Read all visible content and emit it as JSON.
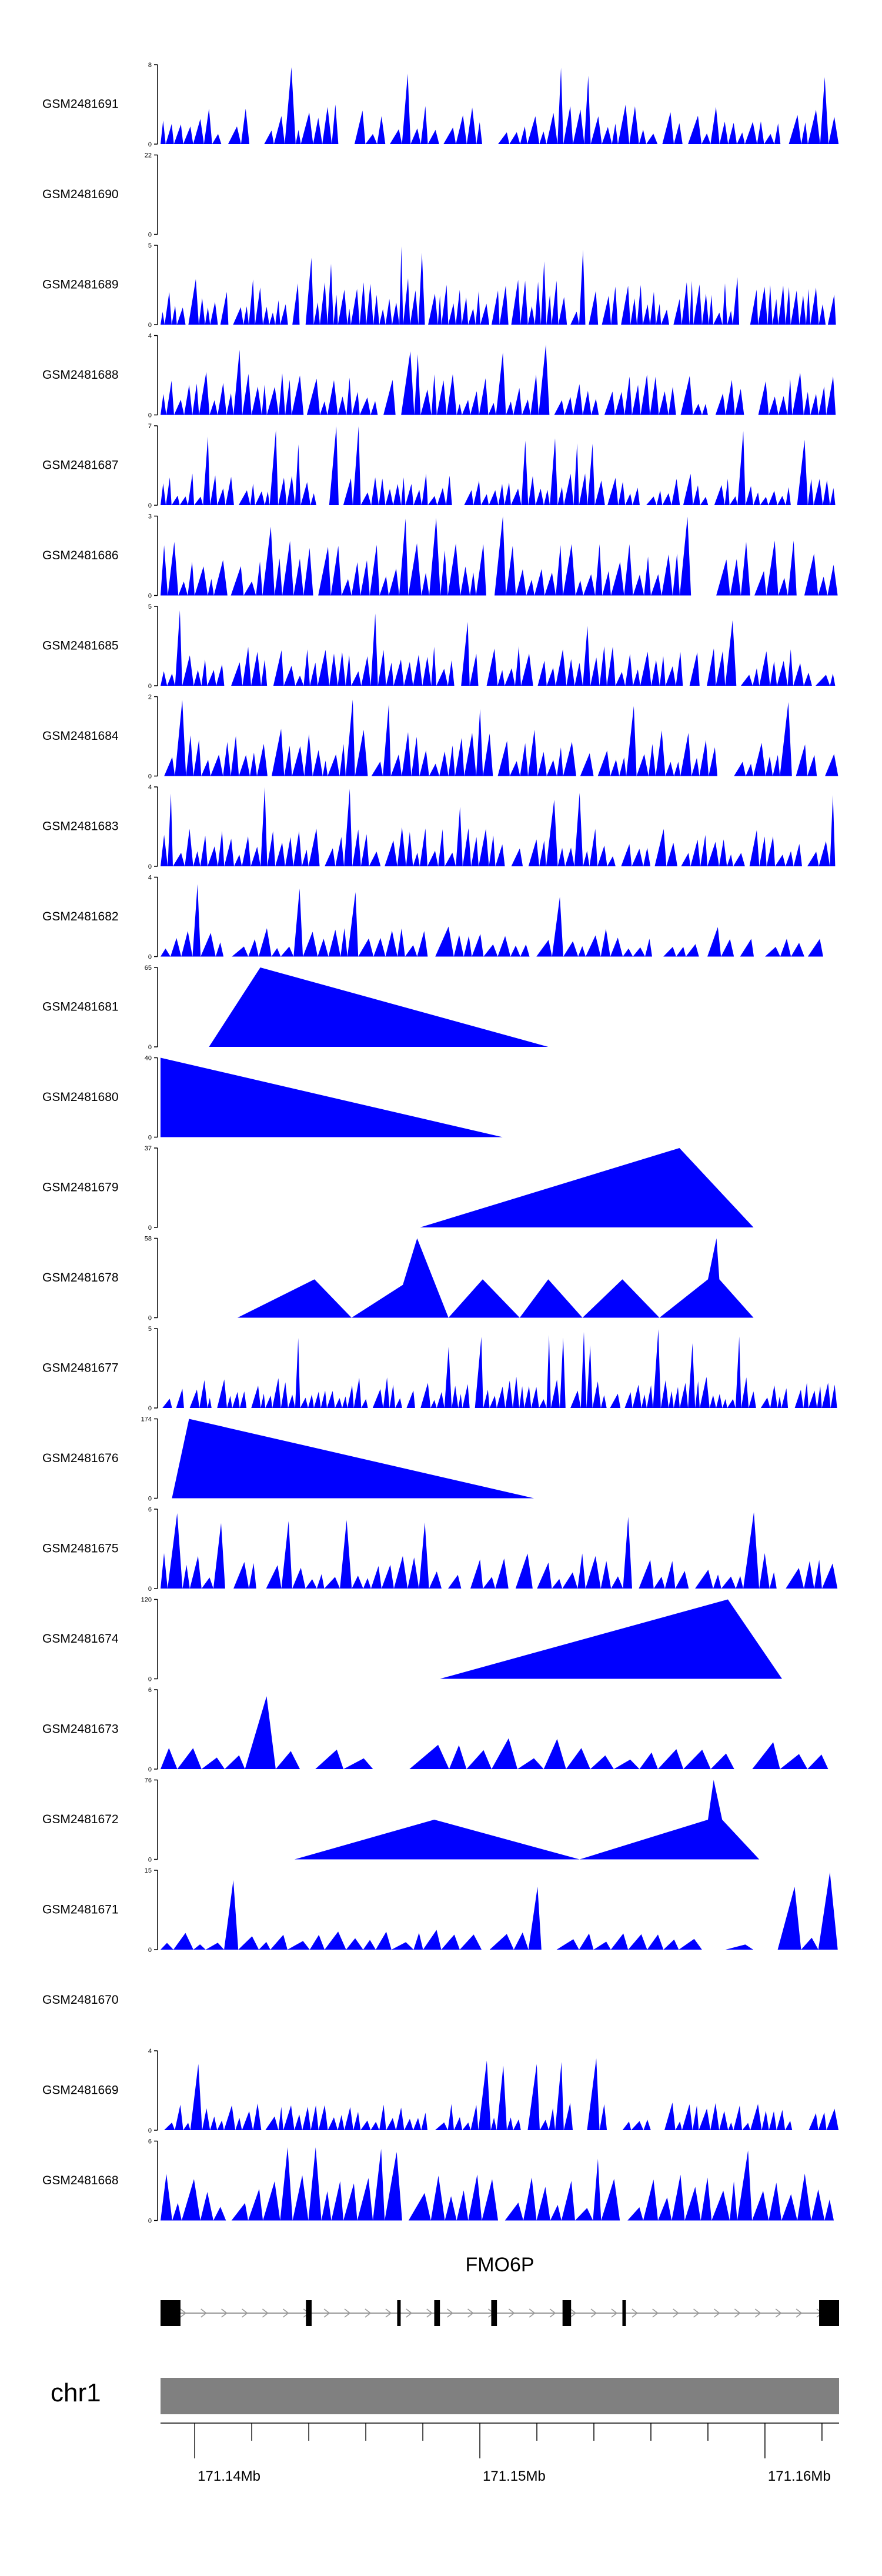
{
  "chart_data": {
    "type": "area",
    "colors": {
      "fill": "#0000ff",
      "axis": "#000000",
      "chrom_bar": "#808080",
      "gene": "#000000"
    },
    "tracks": [
      {
        "name": "GSM2481691",
        "ylim": [
          0,
          8
        ],
        "tick_labels": [
          "0",
          "8"
        ]
      },
      {
        "name": "GSM2481690",
        "ylim": [
          0,
          22
        ],
        "tick_labels": [
          "0",
          "22"
        ]
      },
      {
        "name": "GSM2481689",
        "ylim": [
          0,
          5
        ],
        "tick_labels": [
          "0",
          "5"
        ]
      },
      {
        "name": "GSM2481688",
        "ylim": [
          0,
          4
        ],
        "tick_labels": [
          "0",
          "4"
        ]
      },
      {
        "name": "GSM2481687",
        "ylim": [
          0,
          7
        ],
        "tick_labels": [
          "0",
          "7"
        ]
      },
      {
        "name": "GSM2481686",
        "ylim": [
          0,
          3
        ],
        "tick_labels": [
          "0",
          "3"
        ]
      },
      {
        "name": "GSM2481685",
        "ylim": [
          0,
          5
        ],
        "tick_labels": [
          "0",
          "5"
        ]
      },
      {
        "name": "GSM2481684",
        "ylim": [
          0,
          2
        ],
        "tick_labels": [
          "0",
          "2"
        ]
      },
      {
        "name": "GSM2481683",
        "ylim": [
          0,
          4
        ],
        "tick_labels": [
          "0",
          "4"
        ]
      },
      {
        "name": "GSM2481682",
        "ylim": [
          0,
          4
        ],
        "tick_labels": [
          "0",
          "4"
        ]
      },
      {
        "name": "GSM2481681",
        "ylim": [
          0,
          65
        ],
        "tick_labels": [
          "0",
          "65"
        ],
        "segments": [
          [
            171.1405,
            0
          ],
          [
            171.1423,
            65
          ],
          [
            171.1524,
            0
          ]
        ]
      },
      {
        "name": "GSM2481680",
        "ylim": [
          0,
          40
        ],
        "tick_labels": [
          "0",
          "40"
        ],
        "segments": [
          [
            171.1388,
            0
          ],
          [
            171.1388,
            40
          ],
          [
            171.1508,
            0
          ]
        ]
      },
      {
        "name": "GSM2481679",
        "ylim": [
          0,
          37
        ],
        "tick_labels": [
          "0",
          "37"
        ],
        "segments": [
          [
            171.1479,
            0
          ],
          [
            171.157,
            37
          ],
          [
            171.1596,
            0
          ]
        ]
      },
      {
        "name": "GSM2481678",
        "ylim": [
          0,
          58
        ],
        "tick_labels": [
          "0",
          "58"
        ],
        "segments": [
          [
            171.1415,
            0
          ],
          [
            171.1442,
            28
          ],
          [
            171.1455,
            0
          ],
          [
            171.1473,
            24
          ],
          [
            171.1478,
            58
          ],
          [
            171.1489,
            0
          ],
          [
            171.1501,
            28
          ],
          [
            171.1514,
            0
          ],
          [
            171.1524,
            28
          ],
          [
            171.1536,
            0
          ],
          [
            171.155,
            28
          ],
          [
            171.1563,
            0
          ],
          [
            171.158,
            28
          ],
          [
            171.1583,
            58
          ],
          [
            171.1584,
            28
          ],
          [
            171.1596,
            0
          ]
        ]
      },
      {
        "name": "GSM2481677",
        "ylim": [
          0,
          5
        ],
        "tick_labels": [
          "0",
          "5"
        ]
      },
      {
        "name": "GSM2481676",
        "ylim": [
          0,
          174
        ],
        "tick_labels": [
          "0",
          "174"
        ],
        "segments": [
          [
            171.1392,
            0
          ],
          [
            171.1398,
            174
          ],
          [
            171.1519,
            0
          ]
        ]
      },
      {
        "name": "GSM2481675",
        "ylim": [
          0,
          6
        ],
        "tick_labels": [
          "0",
          "6"
        ]
      },
      {
        "name": "GSM2481674",
        "ylim": [
          0,
          120
        ],
        "tick_labels": [
          "0",
          "120"
        ],
        "segments": [
          [
            171.1486,
            0
          ],
          [
            171.1587,
            120
          ],
          [
            171.1606,
            0
          ]
        ]
      },
      {
        "name": "GSM2481673",
        "ylim": [
          0,
          6
        ],
        "tick_labels": [
          "0",
          "6"
        ]
      },
      {
        "name": "GSM2481672",
        "ylim": [
          0,
          76
        ],
        "tick_labels": [
          "0",
          "76"
        ],
        "segments": [
          [
            171.1435,
            0
          ],
          [
            171.1484,
            38
          ],
          [
            171.1535,
            0
          ],
          [
            171.158,
            38
          ],
          [
            171.1582,
            76
          ],
          [
            171.1585,
            38
          ],
          [
            171.1598,
            0
          ]
        ]
      },
      {
        "name": "GSM2481671",
        "ylim": [
          0,
          15
        ],
        "tick_labels": [
          "0",
          "15"
        ]
      },
      {
        "name": "GSM2481670",
        "ylim": null,
        "tick_labels": []
      },
      {
        "name": "GSM2481669",
        "ylim": [
          0,
          4
        ],
        "tick_labels": [
          "0",
          "4"
        ]
      },
      {
        "name": "GSM2481668",
        "ylim": [
          0,
          6
        ],
        "tick_labels": [
          "0",
          "6"
        ]
      }
    ],
    "gene": {
      "name": "FMO6P",
      "strand": "+",
      "start": 171.1388,
      "end": 171.1626,
      "exons": [
        [
          171.1388,
          171.1395
        ],
        [
          171.1439,
          171.1441
        ],
        [
          171.1471,
          171.1472
        ],
        [
          171.1484,
          171.1486
        ],
        [
          171.1504,
          171.1506
        ],
        [
          171.1529,
          171.1532
        ],
        [
          171.155,
          171.1551
        ],
        [
          171.1619,
          171.1626
        ]
      ]
    },
    "chromosome": {
      "label": "chr1"
    },
    "genome_axis": {
      "unit": "Mb",
      "range": [
        171.1388,
        171.1626
      ],
      "labeled_ticks": [
        171.14,
        171.15,
        171.16
      ],
      "tick_labels": [
        "171.14Mb",
        "171.15Mb",
        "171.16Mb"
      ],
      "minor_tick_step": 0.002
    }
  }
}
